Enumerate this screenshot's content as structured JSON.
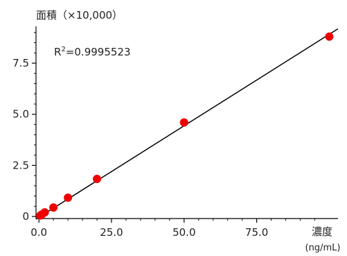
{
  "chart_data": {
    "type": "scatter",
    "ylabel": "面積（×10,000）",
    "xlabel": "濃度",
    "xunit": "(ng/mL)",
    "annotation": {
      "r2_prefix": "R",
      "r2_sup": "2",
      "r2_value": "=0.9995523"
    },
    "xlim": [
      -1,
      103
    ],
    "ylim": [
      -0.1,
      9.3
    ],
    "x_ticks": [
      {
        "value": 0,
        "label": "0.0"
      },
      {
        "value": 25,
        "label": "25.0"
      },
      {
        "value": 50,
        "label": "50.0"
      },
      {
        "value": 75,
        "label": "75.0"
      }
    ],
    "y_ticks": [
      {
        "value": 0,
        "label": "0"
      },
      {
        "value": 2.5,
        "label": "2.5"
      },
      {
        "value": 5.0,
        "label": "5.0"
      },
      {
        "value": 7.5,
        "label": "7.5"
      }
    ],
    "points": [
      {
        "x": 0.5,
        "y": 0.05
      },
      {
        "x": 1,
        "y": 0.1
      },
      {
        "x": 2,
        "y": 0.2
      },
      {
        "x": 5,
        "y": 0.44
      },
      {
        "x": 10,
        "y": 0.92
      },
      {
        "x": 20,
        "y": 1.84
      },
      {
        "x": 50,
        "y": 4.6
      },
      {
        "x": 100,
        "y": 8.8
      }
    ],
    "fit_line": {
      "x": [
        -1,
        103
      ],
      "y": [
        -0.13,
        9.18
      ]
    },
    "colors": {
      "point": "#ee0000",
      "line": "#000000",
      "axis": "#000000"
    },
    "grid": false
  }
}
